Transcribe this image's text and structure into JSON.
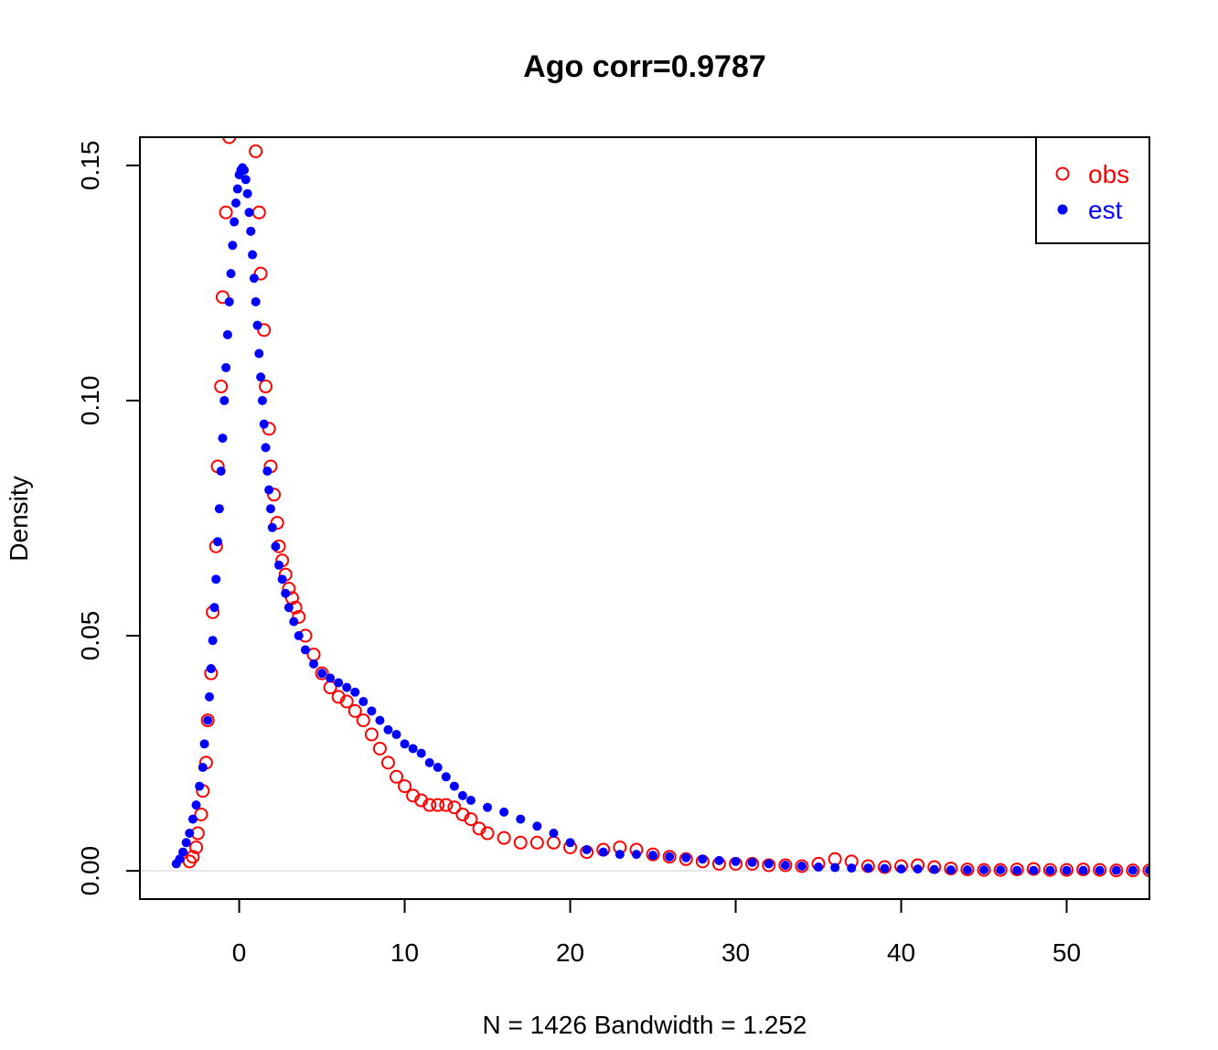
{
  "chart_data": {
    "type": "scatter",
    "title": "Ago corr=0.9787",
    "xlabel": "N = 1426   Bandwidth = 1.252",
    "ylabel": "Density",
    "xlim": [
      -6,
      55
    ],
    "ylim": [
      -0.006,
      0.156
    ],
    "x_ticks": [
      0,
      10,
      20,
      30,
      40,
      50
    ],
    "x_tick_labels": [
      "0",
      "10",
      "20",
      "30",
      "40",
      "50"
    ],
    "y_ticks": [
      0.0,
      0.05,
      0.1,
      0.15
    ],
    "y_tick_labels": [
      "0.00",
      "0.05",
      "0.10",
      "0.15"
    ],
    "grid": false,
    "legend_position": "top-right",
    "series": [
      {
        "name": "obs",
        "marker": "open-circle",
        "color": "#ff0000",
        "points": [
          [
            -3.0,
            0.002
          ],
          [
            -2.8,
            0.003
          ],
          [
            -2.6,
            0.005
          ],
          [
            -2.5,
            0.008
          ],
          [
            -2.3,
            0.012
          ],
          [
            -2.2,
            0.017
          ],
          [
            -2.0,
            0.023
          ],
          [
            -1.9,
            0.032
          ],
          [
            -1.7,
            0.042
          ],
          [
            -1.6,
            0.055
          ],
          [
            -1.4,
            0.069
          ],
          [
            -1.3,
            0.086
          ],
          [
            -1.1,
            0.103
          ],
          [
            -1.0,
            0.122
          ],
          [
            -0.8,
            0.14
          ],
          [
            -0.6,
            0.156
          ],
          [
            1.0,
            0.153
          ],
          [
            1.2,
            0.14
          ],
          [
            1.3,
            0.127
          ],
          [
            1.5,
            0.115
          ],
          [
            1.6,
            0.103
          ],
          [
            1.8,
            0.094
          ],
          [
            1.9,
            0.086
          ],
          [
            2.1,
            0.08
          ],
          [
            2.3,
            0.074
          ],
          [
            2.4,
            0.069
          ],
          [
            2.6,
            0.066
          ],
          [
            2.8,
            0.063
          ],
          [
            3.0,
            0.06
          ],
          [
            3.2,
            0.058
          ],
          [
            3.4,
            0.056
          ],
          [
            3.6,
            0.054
          ],
          [
            4.0,
            0.05
          ],
          [
            4.5,
            0.046
          ],
          [
            5.0,
            0.042
          ],
          [
            5.5,
            0.039
          ],
          [
            6.0,
            0.037
          ],
          [
            6.5,
            0.036
          ],
          [
            7.0,
            0.034
          ],
          [
            7.5,
            0.032
          ],
          [
            8.0,
            0.029
          ],
          [
            8.5,
            0.026
          ],
          [
            9.0,
            0.023
          ],
          [
            9.5,
            0.02
          ],
          [
            10.0,
            0.018
          ],
          [
            10.5,
            0.016
          ],
          [
            11.0,
            0.015
          ],
          [
            11.5,
            0.014
          ],
          [
            12.0,
            0.014
          ],
          [
            12.5,
            0.014
          ],
          [
            13.0,
            0.0135
          ],
          [
            13.5,
            0.012
          ],
          [
            14.0,
            0.011
          ],
          [
            14.5,
            0.009
          ],
          [
            15.0,
            0.008
          ],
          [
            16.0,
            0.007
          ],
          [
            17.0,
            0.006
          ],
          [
            18.0,
            0.006
          ],
          [
            19.0,
            0.006
          ],
          [
            20.0,
            0.005
          ],
          [
            21.0,
            0.004
          ],
          [
            22.0,
            0.0045
          ],
          [
            23.0,
            0.005
          ],
          [
            24.0,
            0.0045
          ],
          [
            25.0,
            0.0035
          ],
          [
            26.0,
            0.003
          ],
          [
            27.0,
            0.0025
          ],
          [
            28.0,
            0.002
          ],
          [
            29.0,
            0.0015
          ],
          [
            30.0,
            0.0015
          ],
          [
            31.0,
            0.0015
          ],
          [
            32.0,
            0.0012
          ],
          [
            33.0,
            0.0012
          ],
          [
            34.0,
            0.001
          ],
          [
            35.0,
            0.0015
          ],
          [
            36.0,
            0.0025
          ],
          [
            37.0,
            0.002
          ],
          [
            38.0,
            0.001
          ],
          [
            39.0,
            0.0008
          ],
          [
            40.0,
            0.001
          ],
          [
            41.0,
            0.0012
          ],
          [
            42.0,
            0.0008
          ],
          [
            43.0,
            0.0005
          ],
          [
            44.0,
            0.0003
          ],
          [
            45.0,
            0.0002
          ],
          [
            46.0,
            0.0002
          ],
          [
            47.0,
            0.0003
          ],
          [
            48.0,
            0.0004
          ],
          [
            49.0,
            0.0002
          ],
          [
            50.0,
            0.0002
          ],
          [
            51.0,
            0.0003
          ],
          [
            52.0,
            0.0002
          ],
          [
            53.0,
            0.0001
          ],
          [
            54.0,
            0.0001
          ],
          [
            55.0,
            0.0001
          ]
        ]
      },
      {
        "name": "est",
        "marker": "filled-circle",
        "color": "#0000ff",
        "points": [
          [
            -3.8,
            0.0015
          ],
          [
            -3.6,
            0.0025
          ],
          [
            -3.4,
            0.004
          ],
          [
            -3.2,
            0.006
          ],
          [
            -3.0,
            0.008
          ],
          [
            -2.8,
            0.011
          ],
          [
            -2.6,
            0.014
          ],
          [
            -2.4,
            0.018
          ],
          [
            -2.2,
            0.022
          ],
          [
            -2.1,
            0.027
          ],
          [
            -1.9,
            0.032
          ],
          [
            -1.8,
            0.037
          ],
          [
            -1.7,
            0.043
          ],
          [
            -1.6,
            0.049
          ],
          [
            -1.5,
            0.056
          ],
          [
            -1.4,
            0.062
          ],
          [
            -1.3,
            0.07
          ],
          [
            -1.2,
            0.077
          ],
          [
            -1.1,
            0.085
          ],
          [
            -1.0,
            0.092
          ],
          [
            -0.9,
            0.1
          ],
          [
            -0.8,
            0.107
          ],
          [
            -0.7,
            0.114
          ],
          [
            -0.6,
            0.121
          ],
          [
            -0.5,
            0.127
          ],
          [
            -0.4,
            0.133
          ],
          [
            -0.3,
            0.138
          ],
          [
            -0.2,
            0.142
          ],
          [
            -0.1,
            0.145
          ],
          [
            0.0,
            0.148
          ],
          [
            0.1,
            0.149
          ],
          [
            0.2,
            0.1495
          ],
          [
            0.3,
            0.149
          ],
          [
            0.4,
            0.147
          ],
          [
            0.5,
            0.144
          ],
          [
            0.6,
            0.14
          ],
          [
            0.7,
            0.136
          ],
          [
            0.8,
            0.131
          ],
          [
            0.9,
            0.126
          ],
          [
            1.0,
            0.121
          ],
          [
            1.1,
            0.116
          ],
          [
            1.2,
            0.11
          ],
          [
            1.3,
            0.105
          ],
          [
            1.4,
            0.1
          ],
          [
            1.5,
            0.095
          ],
          [
            1.6,
            0.09
          ],
          [
            1.7,
            0.085
          ],
          [
            1.8,
            0.081
          ],
          [
            1.9,
            0.077
          ],
          [
            2.0,
            0.073
          ],
          [
            2.2,
            0.069
          ],
          [
            2.4,
            0.065
          ],
          [
            2.6,
            0.062
          ],
          [
            2.8,
            0.059
          ],
          [
            3.0,
            0.056
          ],
          [
            3.3,
            0.053
          ],
          [
            3.6,
            0.05
          ],
          [
            4.0,
            0.047
          ],
          [
            4.5,
            0.044
          ],
          [
            5.0,
            0.042
          ],
          [
            5.5,
            0.041
          ],
          [
            6.0,
            0.04
          ],
          [
            6.5,
            0.039
          ],
          [
            7.0,
            0.038
          ],
          [
            7.5,
            0.036
          ],
          [
            8.0,
            0.034
          ],
          [
            8.5,
            0.032
          ],
          [
            9.0,
            0.03
          ],
          [
            9.5,
            0.029
          ],
          [
            10.0,
            0.027
          ],
          [
            10.5,
            0.026
          ],
          [
            11.0,
            0.025
          ],
          [
            11.5,
            0.023
          ],
          [
            12.0,
            0.022
          ],
          [
            12.5,
            0.02
          ],
          [
            13.0,
            0.018
          ],
          [
            13.5,
            0.016
          ],
          [
            14.0,
            0.015
          ],
          [
            15.0,
            0.0135
          ],
          [
            16.0,
            0.0125
          ],
          [
            17.0,
            0.011
          ],
          [
            18.0,
            0.0095
          ],
          [
            19.0,
            0.008
          ],
          [
            20.0,
            0.006
          ],
          [
            21.0,
            0.0045
          ],
          [
            22.0,
            0.004
          ],
          [
            23.0,
            0.0035
          ],
          [
            24.0,
            0.0035
          ],
          [
            25.0,
            0.0033
          ],
          [
            26.0,
            0.003
          ],
          [
            27.0,
            0.0028
          ],
          [
            28.0,
            0.0025
          ],
          [
            29.0,
            0.0022
          ],
          [
            30.0,
            0.002
          ],
          [
            31.0,
            0.0018
          ],
          [
            32.0,
            0.0015
          ],
          [
            33.0,
            0.0012
          ],
          [
            34.0,
            0.001
          ],
          [
            35.0,
            0.0008
          ],
          [
            36.0,
            0.0007
          ],
          [
            37.0,
            0.0006
          ],
          [
            38.0,
            0.0006
          ],
          [
            39.0,
            0.0005
          ],
          [
            40.0,
            0.0004
          ],
          [
            41.0,
            0.0004
          ],
          [
            42.0,
            0.0003
          ],
          [
            43.0,
            0.0002
          ],
          [
            44.0,
            0.0002
          ],
          [
            45.0,
            0.0002
          ],
          [
            46.0,
            0.0002
          ],
          [
            47.0,
            0.0001
          ],
          [
            48.0,
            0.0001
          ],
          [
            49.0,
            0.0001
          ],
          [
            50.0,
            0.0001
          ],
          [
            51.0,
            0.0001
          ],
          [
            52.0,
            0.0001
          ],
          [
            53.0,
            0.0001
          ],
          [
            54.0,
            0.0001
          ],
          [
            55.0,
            0.0001
          ]
        ]
      }
    ]
  }
}
